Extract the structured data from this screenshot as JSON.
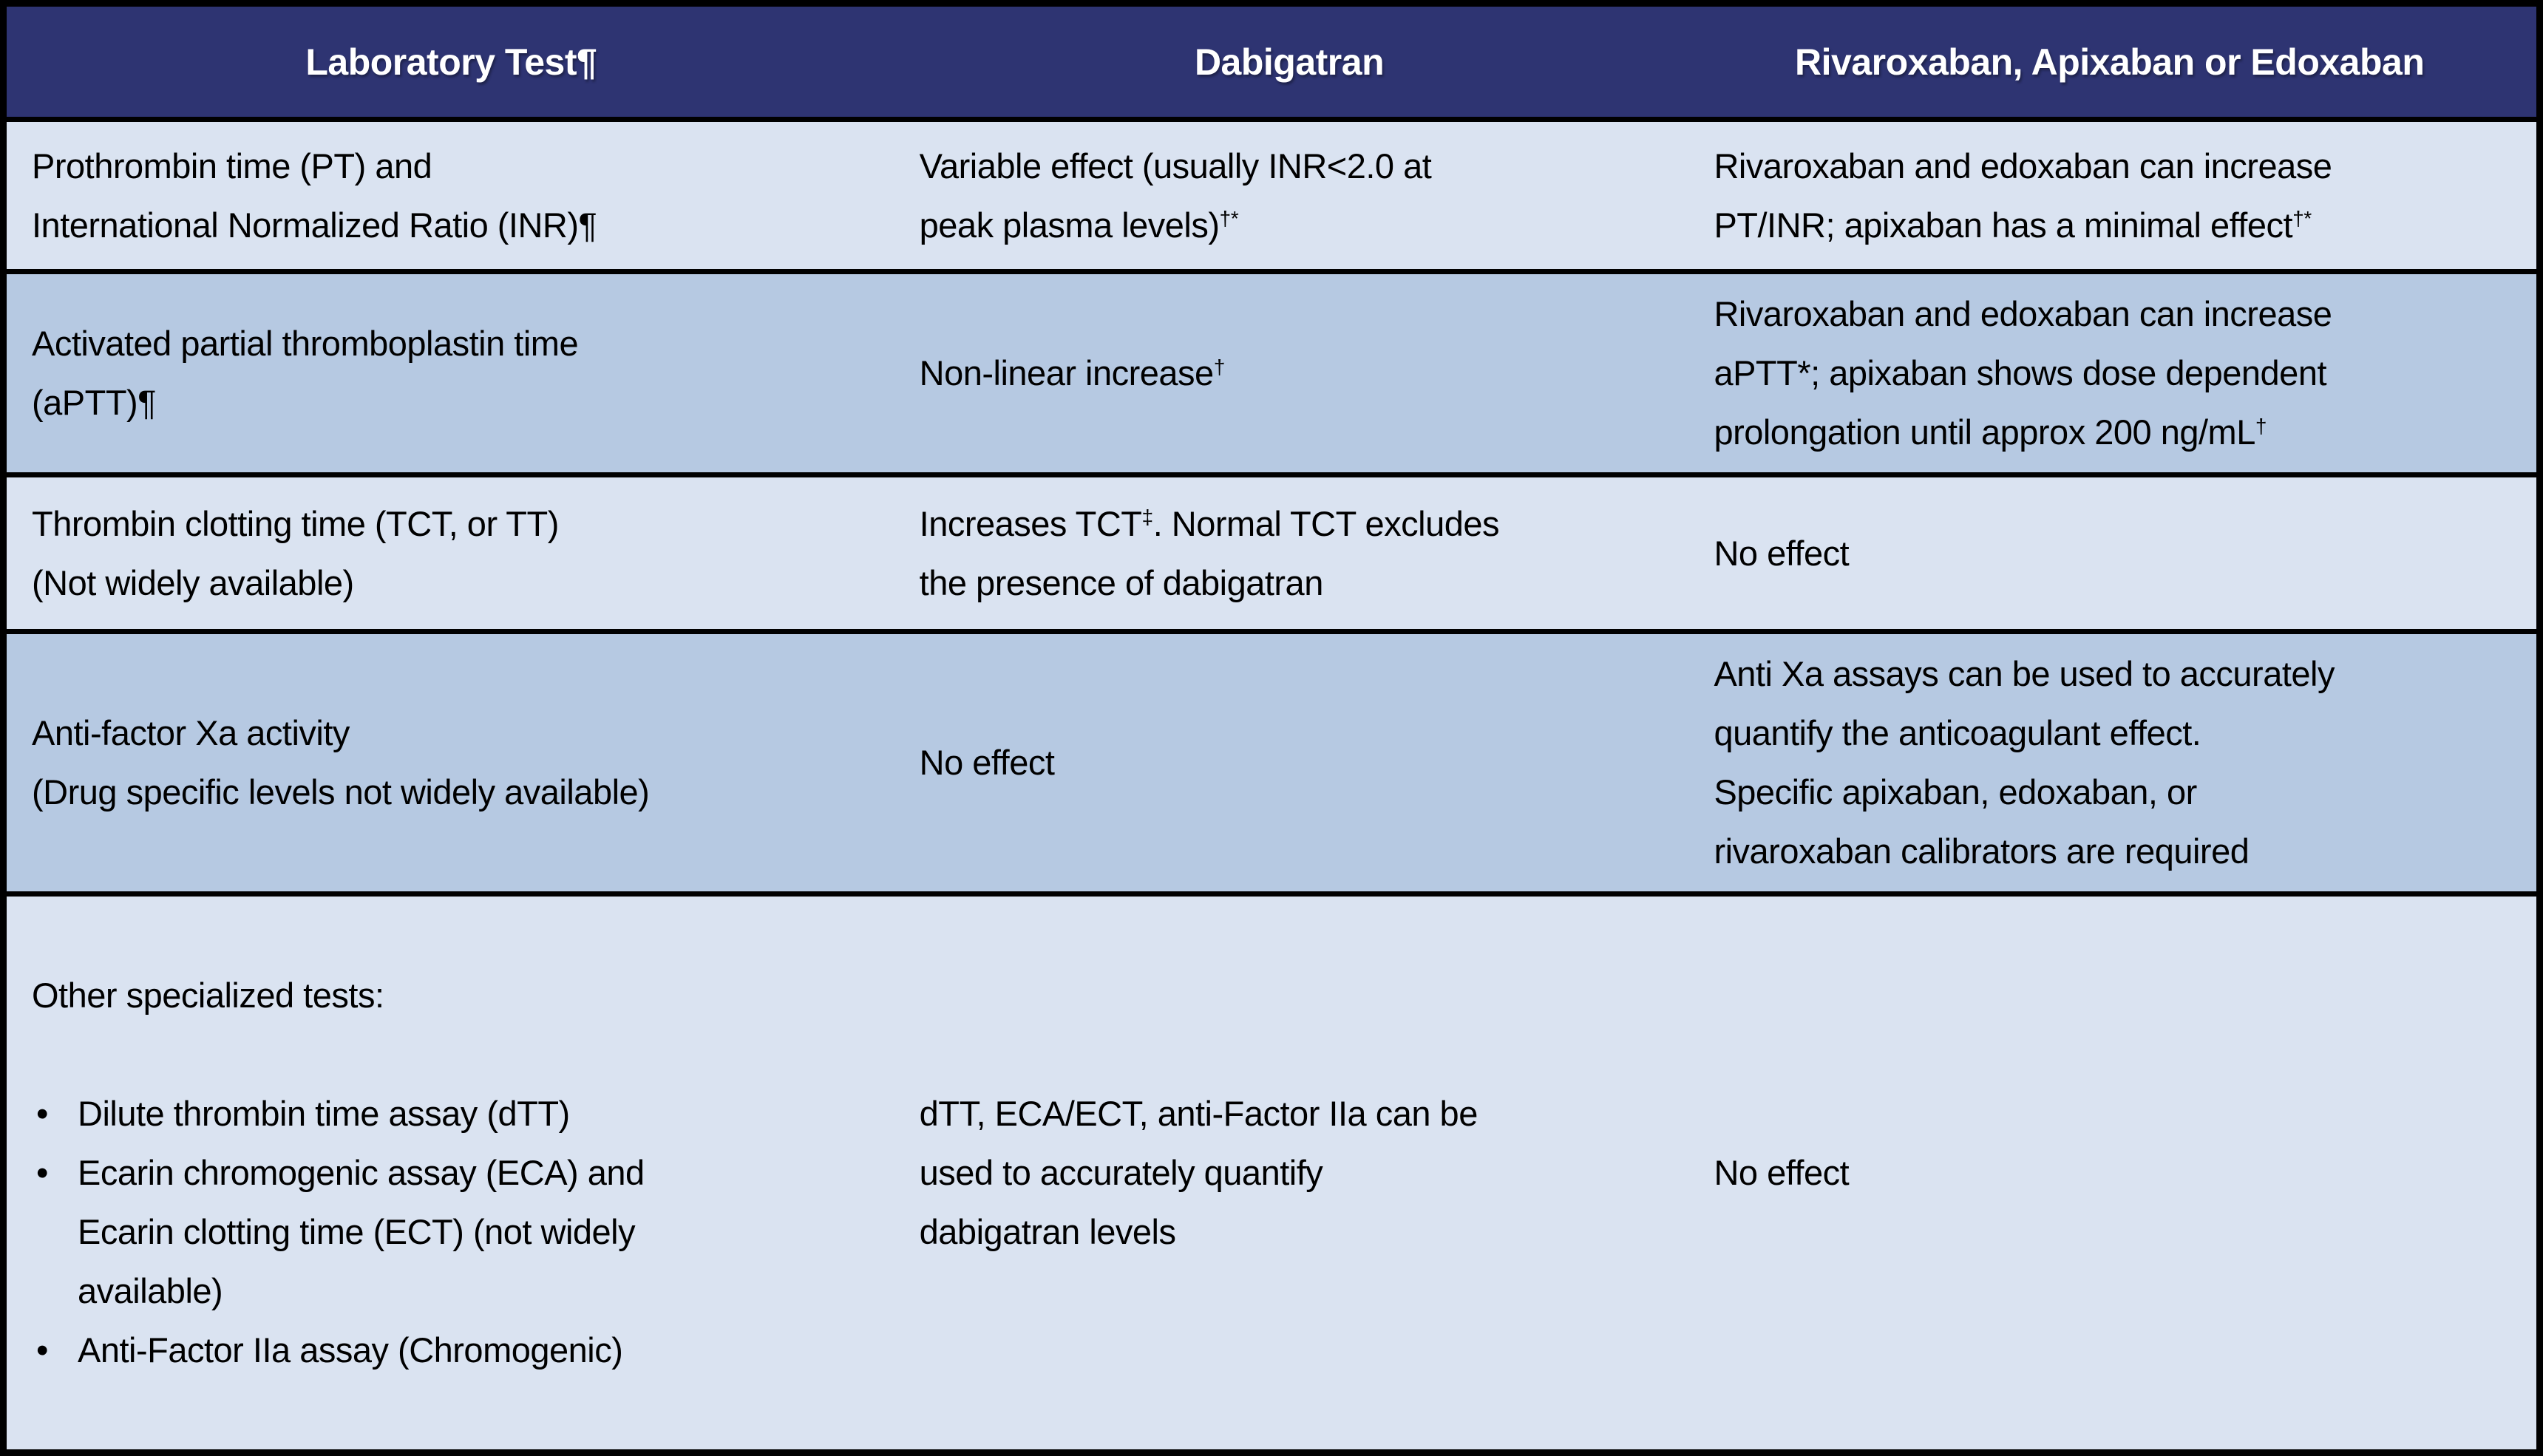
{
  "page": {
    "background": "#000000"
  },
  "colors": {
    "header_bg": "#2E3472",
    "header_text": "#FFFFFF",
    "row_light": "#DAE3F1",
    "row_medium": "#B6C9E2",
    "border": "#000000",
    "body_text": "#000000"
  },
  "table": {
    "headers": [
      "Laboratory Test¶",
      "Dabigatran",
      "Rivaroxaban, Apixaban or Edoxaban"
    ],
    "rows": [
      {
        "shade": "light",
        "test": "Prothrombin time (PT) and\nInternational Normalized Ratio (INR)¶",
        "dabigatran": "Variable effect (usually INR<2.0 at\npeak plasma levels)^{†*}",
        "xabans": "Rivaroxaban and edoxaban can increase\nPT/INR; apixaban has a minimal effect^{†*}"
      },
      {
        "shade": "medium",
        "test": "Activated partial thromboplastin time\n(aPTT)¶",
        "dabigatran": "Non-linear increase^{†}",
        "xabans": "Rivaroxaban and edoxaban can increase\naPTT*; apixaban shows dose dependent\nprolongation until approx 200 ng/mL^{†}"
      },
      {
        "shade": "light",
        "test": "Thrombin clotting time (TCT, or TT)\n(Not widely available)",
        "dabigatran": "Increases TCT^{‡}. Normal TCT excludes\nthe presence of dabigatran",
        "xabans": "No effect"
      },
      {
        "shade": "medium",
        "test": "Anti-factor Xa activity\n(Drug specific levels not widely available)",
        "dabigatran": "No effect",
        "xabans": "Anti Xa assays can be used to accurately\nquantify the anticoagulant effect.\nSpecific apixaban, edoxaban, or\nrivaroxaban calibrators are required"
      },
      {
        "shade": "light",
        "test_intro": "Other specialized tests:",
        "test_bullets": [
          "Dilute thrombin time assay (dTT)",
          "Ecarin chromogenic assay (ECA) and\nEcarin clotting time (ECT) (not widely\navailable)",
          "Anti-Factor IIa assay (Chromogenic)"
        ],
        "dabigatran": "dTT, ECA/ECT, anti-Factor IIa can be\nused to accurately quantify\ndabigatran levels",
        "xabans": "No effect"
      }
    ]
  }
}
